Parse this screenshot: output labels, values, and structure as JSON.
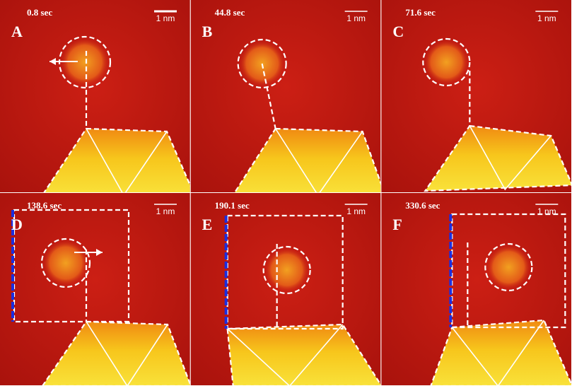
{
  "panels": [
    {
      "label": "A",
      "time": "0.8 sec",
      "scale": "1 nm"
    },
    {
      "label": "B",
      "time": "44.8 sec",
      "scale": "1 nm"
    },
    {
      "label": "C",
      "time": "71.6 sec",
      "scale": "1 nm"
    },
    {
      "label": "D",
      "time": "138.6 sec",
      "scale": "1 nm"
    },
    {
      "label": "E",
      "time": "190.1 sec",
      "scale": "1 nm"
    },
    {
      "label": "F",
      "time": "330.6 sec",
      "scale": "1 nm"
    }
  ]
}
